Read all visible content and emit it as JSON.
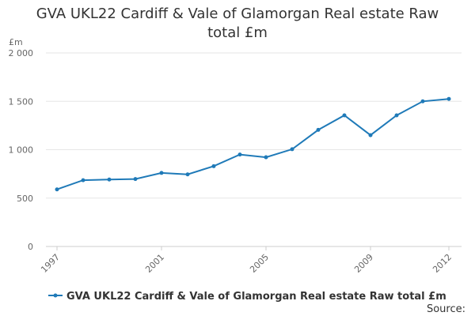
{
  "chart_data": {
    "type": "line",
    "title": "GVA UKL22 Cardiff & Vale of Glamorgan Real estate Raw total £m",
    "ylabel": "£m",
    "xlabel": "",
    "ylim": [
      0,
      2000
    ],
    "yticks": [
      {
        "value": 0,
        "label": "0"
      },
      {
        "value": 500,
        "label": "500"
      },
      {
        "value": 1000,
        "label": "1 000"
      },
      {
        "value": 1500,
        "label": "1 500"
      },
      {
        "value": 2000,
        "label": "2 000"
      }
    ],
    "xlim": [
      1997,
      2012
    ],
    "xticks": [
      {
        "value": 1997,
        "label": "1997"
      },
      {
        "value": 2001,
        "label": "2001"
      },
      {
        "value": 2005,
        "label": "2005"
      },
      {
        "value": 2009,
        "label": "2009"
      },
      {
        "value": 2012,
        "label": "2012"
      }
    ],
    "grid": true,
    "color": "#1f7ab8",
    "series": [
      {
        "name": "GVA UKL22 Cardiff & Vale of Glamorgan Real estate Raw total £m",
        "x": [
          1997,
          1998,
          1999,
          2000,
          2001,
          2002,
          2003,
          2004,
          2005,
          2006,
          2007,
          2008,
          2009,
          2010,
          2011,
          2012
        ],
        "values": [
          590,
          685,
          692,
          697,
          760,
          745,
          830,
          950,
          922,
          1005,
          1205,
          1355,
          1150,
          1355,
          1500,
          1525
        ]
      }
    ],
    "legend_position": "bottom",
    "source_label": "Source:"
  }
}
